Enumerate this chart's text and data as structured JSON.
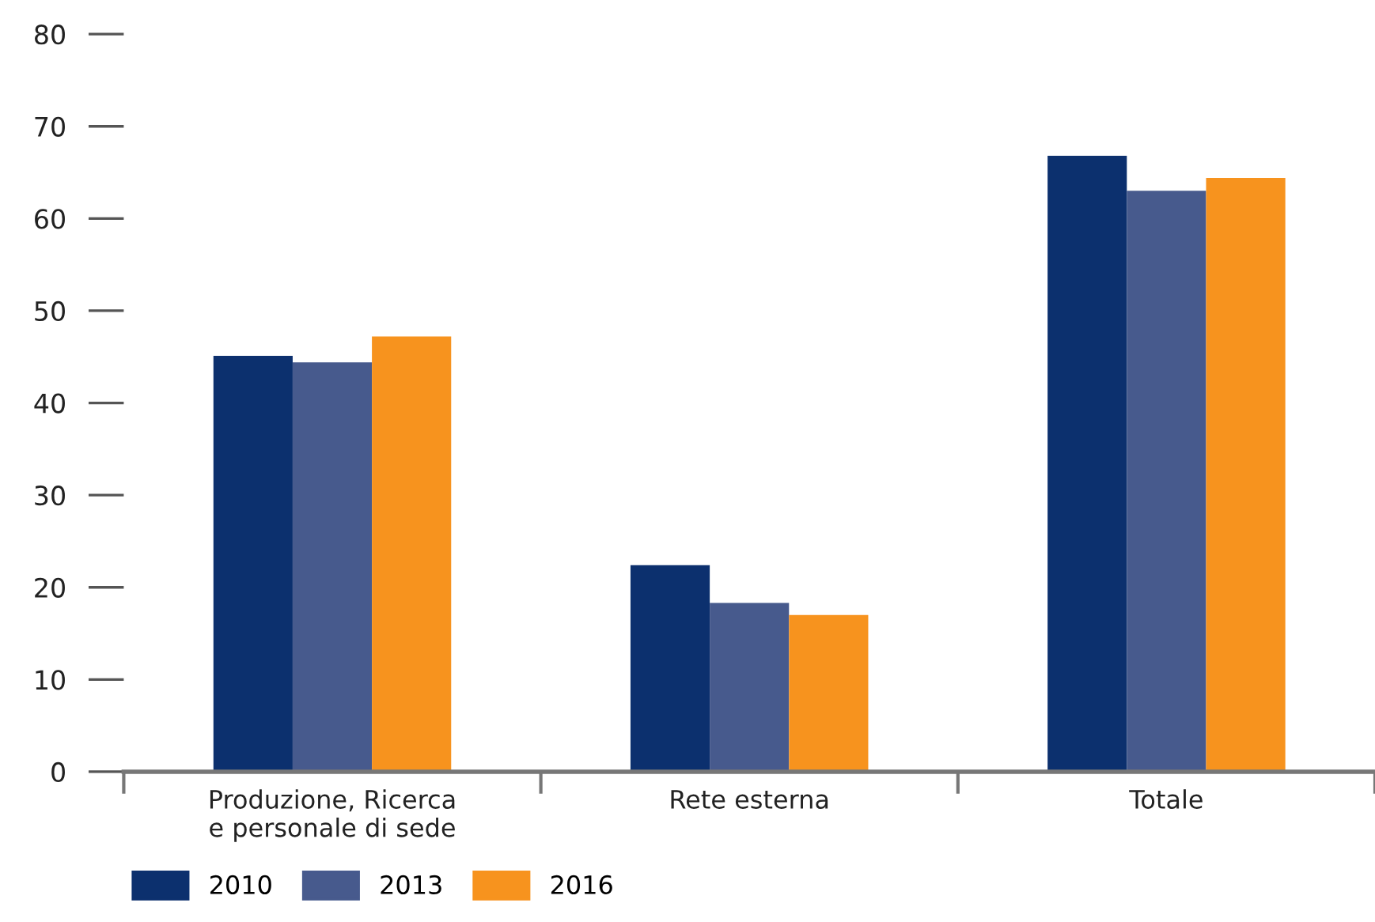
{
  "chart_data": {
    "type": "bar",
    "categories": [
      "Produzione, Ricerca\ne personale di sede",
      "Rete esterna",
      "Totale"
    ],
    "series": [
      {
        "name": "2010",
        "color": "#0c306e",
        "values": [
          45.1,
          22.4,
          66.8
        ]
      },
      {
        "name": "2013",
        "color": "#475a8d",
        "values": [
          44.4,
          18.3,
          63.0
        ]
      },
      {
        "name": "2016",
        "color": "#f7931e",
        "values": [
          47.2,
          17.0,
          64.4
        ]
      }
    ],
    "ylim": [
      0,
      80
    ],
    "yticks": [
      0,
      10,
      20,
      30,
      40,
      50,
      60,
      70,
      80
    ],
    "grid": false,
    "legend": "bottom left"
  }
}
